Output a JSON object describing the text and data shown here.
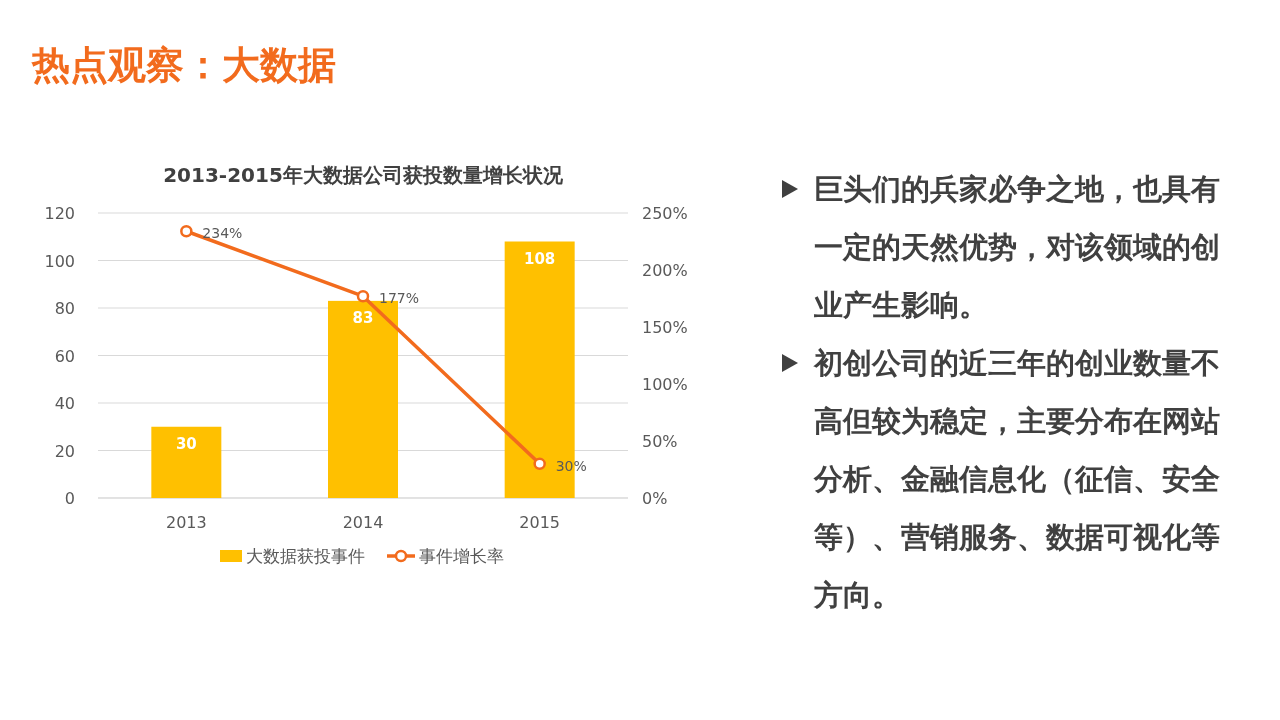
{
  "chart_data": {
    "type": "bar",
    "title": "2013-2015年大数据公司获投数量增长状况",
    "categories": [
      "2013",
      "2014",
      "2015"
    ],
    "series": [
      {
        "name": "大数据获投事件",
        "color": "#ffc000",
        "values": [
          30,
          83,
          108
        ],
        "value_labels": [
          "30",
          "83",
          "108"
        ]
      },
      {
        "name": "事件增长率",
        "type": "line",
        "axis": "y2",
        "color": "#f26b1d",
        "values": [
          234,
          177,
          30
        ],
        "value_labels": [
          "234%",
          "177%",
          "30%"
        ]
      }
    ],
    "ylim": [
      0,
      120
    ],
    "yticks": [
      0,
      20,
      40,
      60,
      80,
      100,
      120
    ],
    "y2lim": [
      0,
      250
    ],
    "y2ticks": [
      {
        "value": 0,
        "label": "0%"
      },
      {
        "value": 50,
        "label": "50%"
      },
      {
        "value": 100,
        "label": "100%"
      },
      {
        "value": 150,
        "label": "150%"
      },
      {
        "value": 200,
        "label": "200%"
      },
      {
        "value": 250,
        "label": "250%"
      }
    ],
    "grid": "y",
    "legend": "bottom",
    "marker": "circle",
    "annotations": [
      "热点观察：大数据",
      "巨头们的兵家必争之地，也具有一定的天然优势，对该领域的创业产生影响。",
      "初创公司的近三年的创业数量不高但较为稳定，主要分布在网站分析、金融信息化（征信、安全等）、营销服务、数据可视化等方向。"
    ]
  }
}
